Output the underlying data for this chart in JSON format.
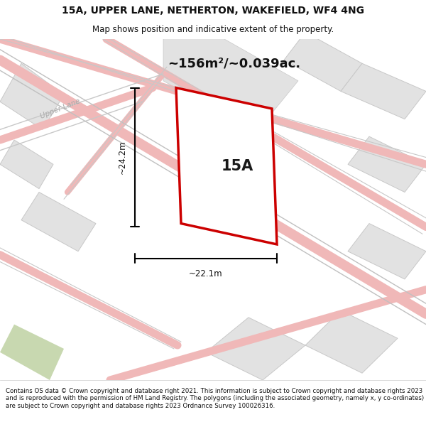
{
  "title_line1": "15A, UPPER LANE, NETHERTON, WAKEFIELD, WF4 4NG",
  "title_line2": "Map shows position and indicative extent of the property.",
  "area_text": "~156m²/~0.039ac.",
  "label_15A": "15A",
  "dim_vertical": "~24.2m",
  "dim_horizontal": "~22.1m",
  "street_label": "Upper Lane",
  "footer_text": "Contains OS data © Crown copyright and database right 2021. This information is subject to Crown copyright and database rights 2023 and is reproduced with the permission of HM Land Registry. The polygons (including the associated geometry, namely x, y co-ordinates) are subject to Crown copyright and database rights 2023 Ordnance Survey 100026316.",
  "map_bg": "#f2f1ef",
  "plot_fill": "#ffffff",
  "plot_edge": "#cc0000",
  "road_color": "#f0b8b8",
  "block_fill": "#e2e2e2",
  "block_edge": "#c8c8c8",
  "title_fontsize": 10,
  "subtitle_fontsize": 8.5,
  "area_fontsize": 13,
  "label_fontsize": 15,
  "dim_fontsize": 8.5,
  "footer_fontsize": 6.2,
  "street_fontsize": 7.5
}
